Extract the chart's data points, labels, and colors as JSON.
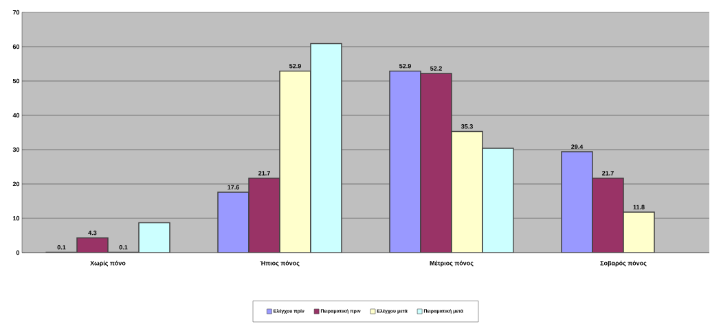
{
  "chart_data": {
    "type": "bar",
    "categories": [
      "Χωρίς πόνο",
      "Ήπιος πόνος",
      "Μέτριος πόνος",
      "Σοβαρός πόνος"
    ],
    "series": [
      {
        "name": "Ελέγχου πρίν",
        "color": "#9999ff",
        "values": [
          0.1,
          17.6,
          52.9,
          29.4
        ],
        "value_labels": [
          "0.1",
          "17.6",
          "52.9",
          "29.4"
        ]
      },
      {
        "name": "Πειραματική πριν",
        "color": "#993366",
        "values": [
          4.3,
          21.7,
          52.2,
          21.7
        ],
        "value_labels": [
          "4.3",
          "21.7",
          "52.2",
          "21.7"
        ]
      },
      {
        "name": "Ελέγχου μετά",
        "color": "#ffffcc",
        "values": [
          0.1,
          52.9,
          35.3,
          11.8
        ],
        "value_labels": [
          "0.1",
          "52.9",
          "35.3",
          "11.8"
        ]
      },
      {
        "name": "Πειραματική μετά",
        "color": "#ccffff",
        "values": [
          8.7,
          60.9,
          30.4,
          null
        ]
      }
    ],
    "ylim": [
      0,
      70
    ],
    "yticks": [
      0,
      10,
      20,
      30,
      40,
      50,
      60,
      70
    ],
    "grid": "y",
    "legend": "bottom"
  }
}
